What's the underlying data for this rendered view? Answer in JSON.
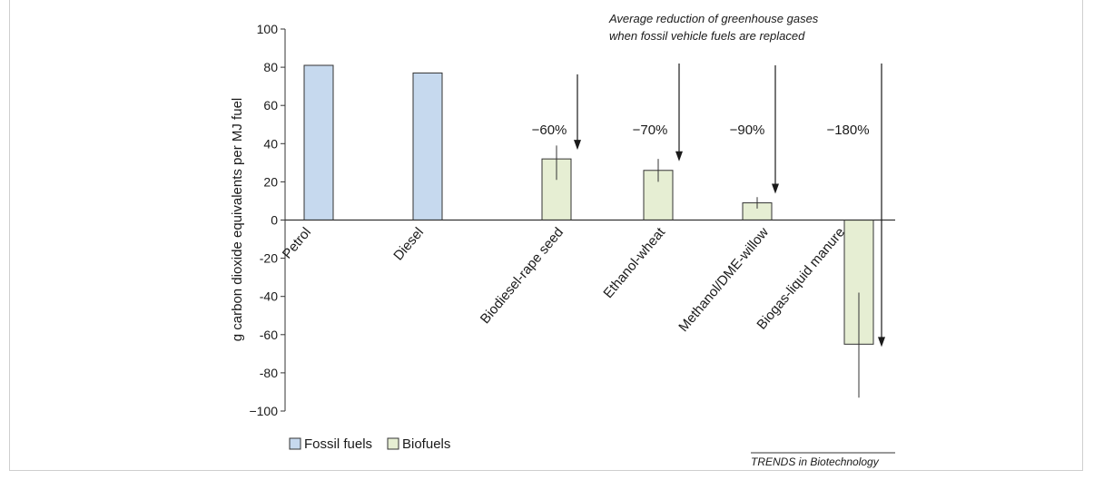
{
  "chart_data": {
    "type": "bar",
    "ylabel": "g carbon dioxide equivalents per MJ fuel",
    "ylim": [
      -100,
      100
    ],
    "yticks": [
      "100",
      "80",
      "60",
      "40",
      "20",
      "0",
      "-20",
      "-40",
      "-60",
      "-80",
      "−100"
    ],
    "categories": [
      "Petrol",
      "Diesel",
      "Biodiesel-rape seed",
      "Ethanol-wheat",
      "Methanol/DME-willow",
      "Biogas-liquid manure"
    ],
    "values": [
      81,
      77,
      32,
      26,
      9,
      -65
    ],
    "error_low": [
      null,
      null,
      21,
      20,
      6,
      -93
    ],
    "error_high": [
      null,
      null,
      39,
      32,
      12,
      -38
    ],
    "groups": [
      "Fossil fuels",
      "Fossil fuels",
      "Biofuels",
      "Biofuels",
      "Biofuels",
      "Biofuels"
    ],
    "reductions": [
      "",
      "",
      "−60%",
      "−70%",
      "−90%",
      "−180%"
    ],
    "annotation": [
      "Average reduction of greenhouse gases",
      "when fossil vehicle fuels are replaced"
    ],
    "legend": [
      {
        "name": "Fossil fuels",
        "color": "#c6d9ee"
      },
      {
        "name": "Biofuels",
        "color": "#e6eed3"
      }
    ],
    "legend_position": "bottom-left",
    "grid": false,
    "credit": "TRENDS in Biotechnology"
  }
}
